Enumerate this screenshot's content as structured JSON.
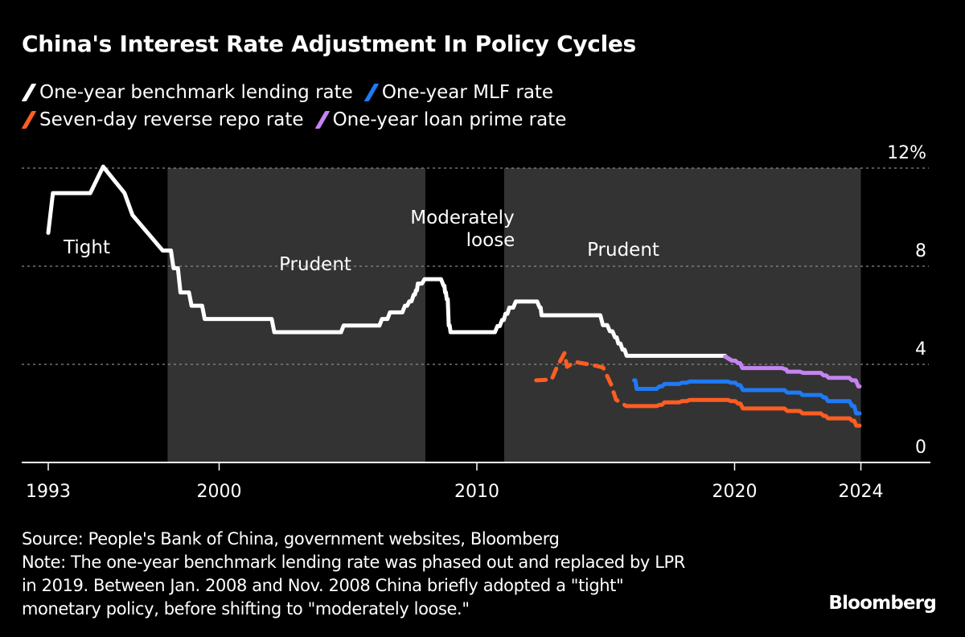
{
  "chart_data": {
    "type": "line",
    "title": "China's Interest Rate Adjustment In Policy Cycles",
    "xlabel": "",
    "ylabel": "",
    "ylim": [
      0,
      12
    ],
    "y_ticks": [
      {
        "value": 12,
        "label": "12%"
      },
      {
        "value": 8,
        "label": "8"
      },
      {
        "value": 4,
        "label": "4"
      },
      {
        "value": 0,
        "label": "0"
      }
    ],
    "x_ticks": [
      {
        "value": 1993.37,
        "label": "1993"
      },
      {
        "value": 2000,
        "label": "2000"
      },
      {
        "value": 2010,
        "label": "2010"
      },
      {
        "value": 2020,
        "label": "2020"
      },
      {
        "value": 2024.9,
        "label": "2024"
      }
    ],
    "grid": "horizontal dotted",
    "legend_placement": "top-left",
    "policy_periods": [
      {
        "label": "Tight",
        "start": 1993.37,
        "end": 1998.0,
        "shaded": false
      },
      {
        "label": "Prudent",
        "start": 1998.0,
        "end": 2008.0,
        "shaded": true
      },
      {
        "label": "Moderately loose",
        "start": 2008.0,
        "end": 2011.06,
        "shaded": false
      },
      {
        "label": "Prudent",
        "start": 2011.06,
        "end": 2024.9,
        "shaded": true
      }
    ],
    "series": [
      {
        "name": "One-year benchmark lending rate",
        "color": "#ffffff",
        "points": [
          [
            1993.37,
            9.36
          ],
          [
            1993.55,
            10.98
          ],
          [
            1995.0,
            10.98
          ],
          [
            1995.5,
            12.06
          ],
          [
            1996.33,
            10.98
          ],
          [
            1996.64,
            10.08
          ],
          [
            1997.81,
            8.64
          ],
          [
            1998.23,
            7.92
          ],
          [
            1998.5,
            6.93
          ],
          [
            1998.93,
            6.39
          ],
          [
            1999.44,
            5.85
          ],
          [
            2002.14,
            5.31
          ],
          [
            2004.83,
            5.58
          ],
          [
            2006.32,
            5.85
          ],
          [
            2006.63,
            6.12
          ],
          [
            2007.21,
            6.39
          ],
          [
            2007.38,
            6.57
          ],
          [
            2007.55,
            6.84
          ],
          [
            2007.64,
            7.02
          ],
          [
            2007.71,
            7.29
          ],
          [
            2007.97,
            7.47
          ],
          [
            2008.71,
            7.2
          ],
          [
            2008.77,
            6.93
          ],
          [
            2008.83,
            6.66
          ],
          [
            2008.91,
            5.58
          ],
          [
            2008.98,
            5.31
          ],
          [
            2010.8,
            5.56
          ],
          [
            2010.98,
            5.81
          ],
          [
            2011.11,
            6.06
          ],
          [
            2011.26,
            6.31
          ],
          [
            2011.51,
            6.56
          ],
          [
            2012.44,
            6.31
          ],
          [
            2012.51,
            6.0
          ],
          [
            2014.89,
            5.6
          ],
          [
            2015.16,
            5.35
          ],
          [
            2015.36,
            5.1
          ],
          [
            2015.49,
            4.85
          ],
          [
            2015.65,
            4.6
          ],
          [
            2015.81,
            4.35
          ],
          [
            2019.63,
            4.35
          ]
        ]
      },
      {
        "name": "One-year MLF rate",
        "color": "#1f7af5",
        "points": [
          [
            2016.1,
            3.35
          ],
          [
            2016.2,
            3.0
          ],
          [
            2017.08,
            3.1
          ],
          [
            2017.28,
            3.2
          ],
          [
            2017.95,
            3.25
          ],
          [
            2018.25,
            3.3
          ],
          [
            2019.85,
            3.25
          ],
          [
            2020.13,
            3.15
          ],
          [
            2020.32,
            2.95
          ],
          [
            2022.04,
            2.85
          ],
          [
            2022.63,
            2.75
          ],
          [
            2023.45,
            2.65
          ],
          [
            2023.62,
            2.5
          ],
          [
            2024.56,
            2.3
          ],
          [
            2024.72,
            2.0
          ],
          [
            2024.85,
            2.0
          ]
        ]
      },
      {
        "name": "Seven-day reverse repo rate",
        "color": "#ff5d22",
        "dashed_until": 2015.8,
        "points": [
          [
            2012.3,
            3.35
          ],
          [
            2012.9,
            3.38
          ],
          [
            2013.1,
            3.87
          ],
          [
            2013.4,
            4.46
          ],
          [
            2013.5,
            3.9
          ],
          [
            2013.8,
            4.1
          ],
          [
            2014.5,
            3.97
          ],
          [
            2014.9,
            3.87
          ],
          [
            2015.2,
            3.2
          ],
          [
            2015.4,
            2.56
          ],
          [
            2015.8,
            2.3
          ],
          [
            2017.08,
            2.35
          ],
          [
            2017.28,
            2.45
          ],
          [
            2017.95,
            2.5
          ],
          [
            2018.25,
            2.55
          ],
          [
            2019.85,
            2.5
          ],
          [
            2020.13,
            2.4
          ],
          [
            2020.32,
            2.2
          ],
          [
            2022.04,
            2.1
          ],
          [
            2022.63,
            2.0
          ],
          [
            2023.45,
            1.9
          ],
          [
            2023.62,
            1.8
          ],
          [
            2024.56,
            1.7
          ],
          [
            2024.72,
            1.5
          ],
          [
            2024.85,
            1.5
          ]
        ]
      },
      {
        "name": "One-year loan prime rate",
        "color": "#c683f2",
        "points": [
          [
            2019.63,
            4.31
          ],
          [
            2019.72,
            4.25
          ],
          [
            2019.8,
            4.2
          ],
          [
            2019.88,
            4.15
          ],
          [
            2020.13,
            4.05
          ],
          [
            2020.3,
            3.85
          ],
          [
            2021.95,
            3.8
          ],
          [
            2022.05,
            3.7
          ],
          [
            2022.65,
            3.65
          ],
          [
            2023.45,
            3.55
          ],
          [
            2023.65,
            3.45
          ],
          [
            2024.55,
            3.35
          ],
          [
            2024.8,
            3.1
          ],
          [
            2024.85,
            3.1
          ]
        ]
      }
    ]
  },
  "footer": {
    "source": "Source: People's Bank of China, government websites, Bloomberg",
    "note_lines": [
      "Note: The one-year benchmark lending rate was phased out and replaced by LPR",
      "in 2019. Between Jan. 2008 and Nov. 2008 China briefly adopted a \"tight\"",
      "monetary policy, before shifting to \"moderately loose.\""
    ],
    "brand": "Bloomberg"
  },
  "colors": {
    "background": "#000000",
    "shade": "#333333",
    "grid": "#8a8a8a"
  }
}
